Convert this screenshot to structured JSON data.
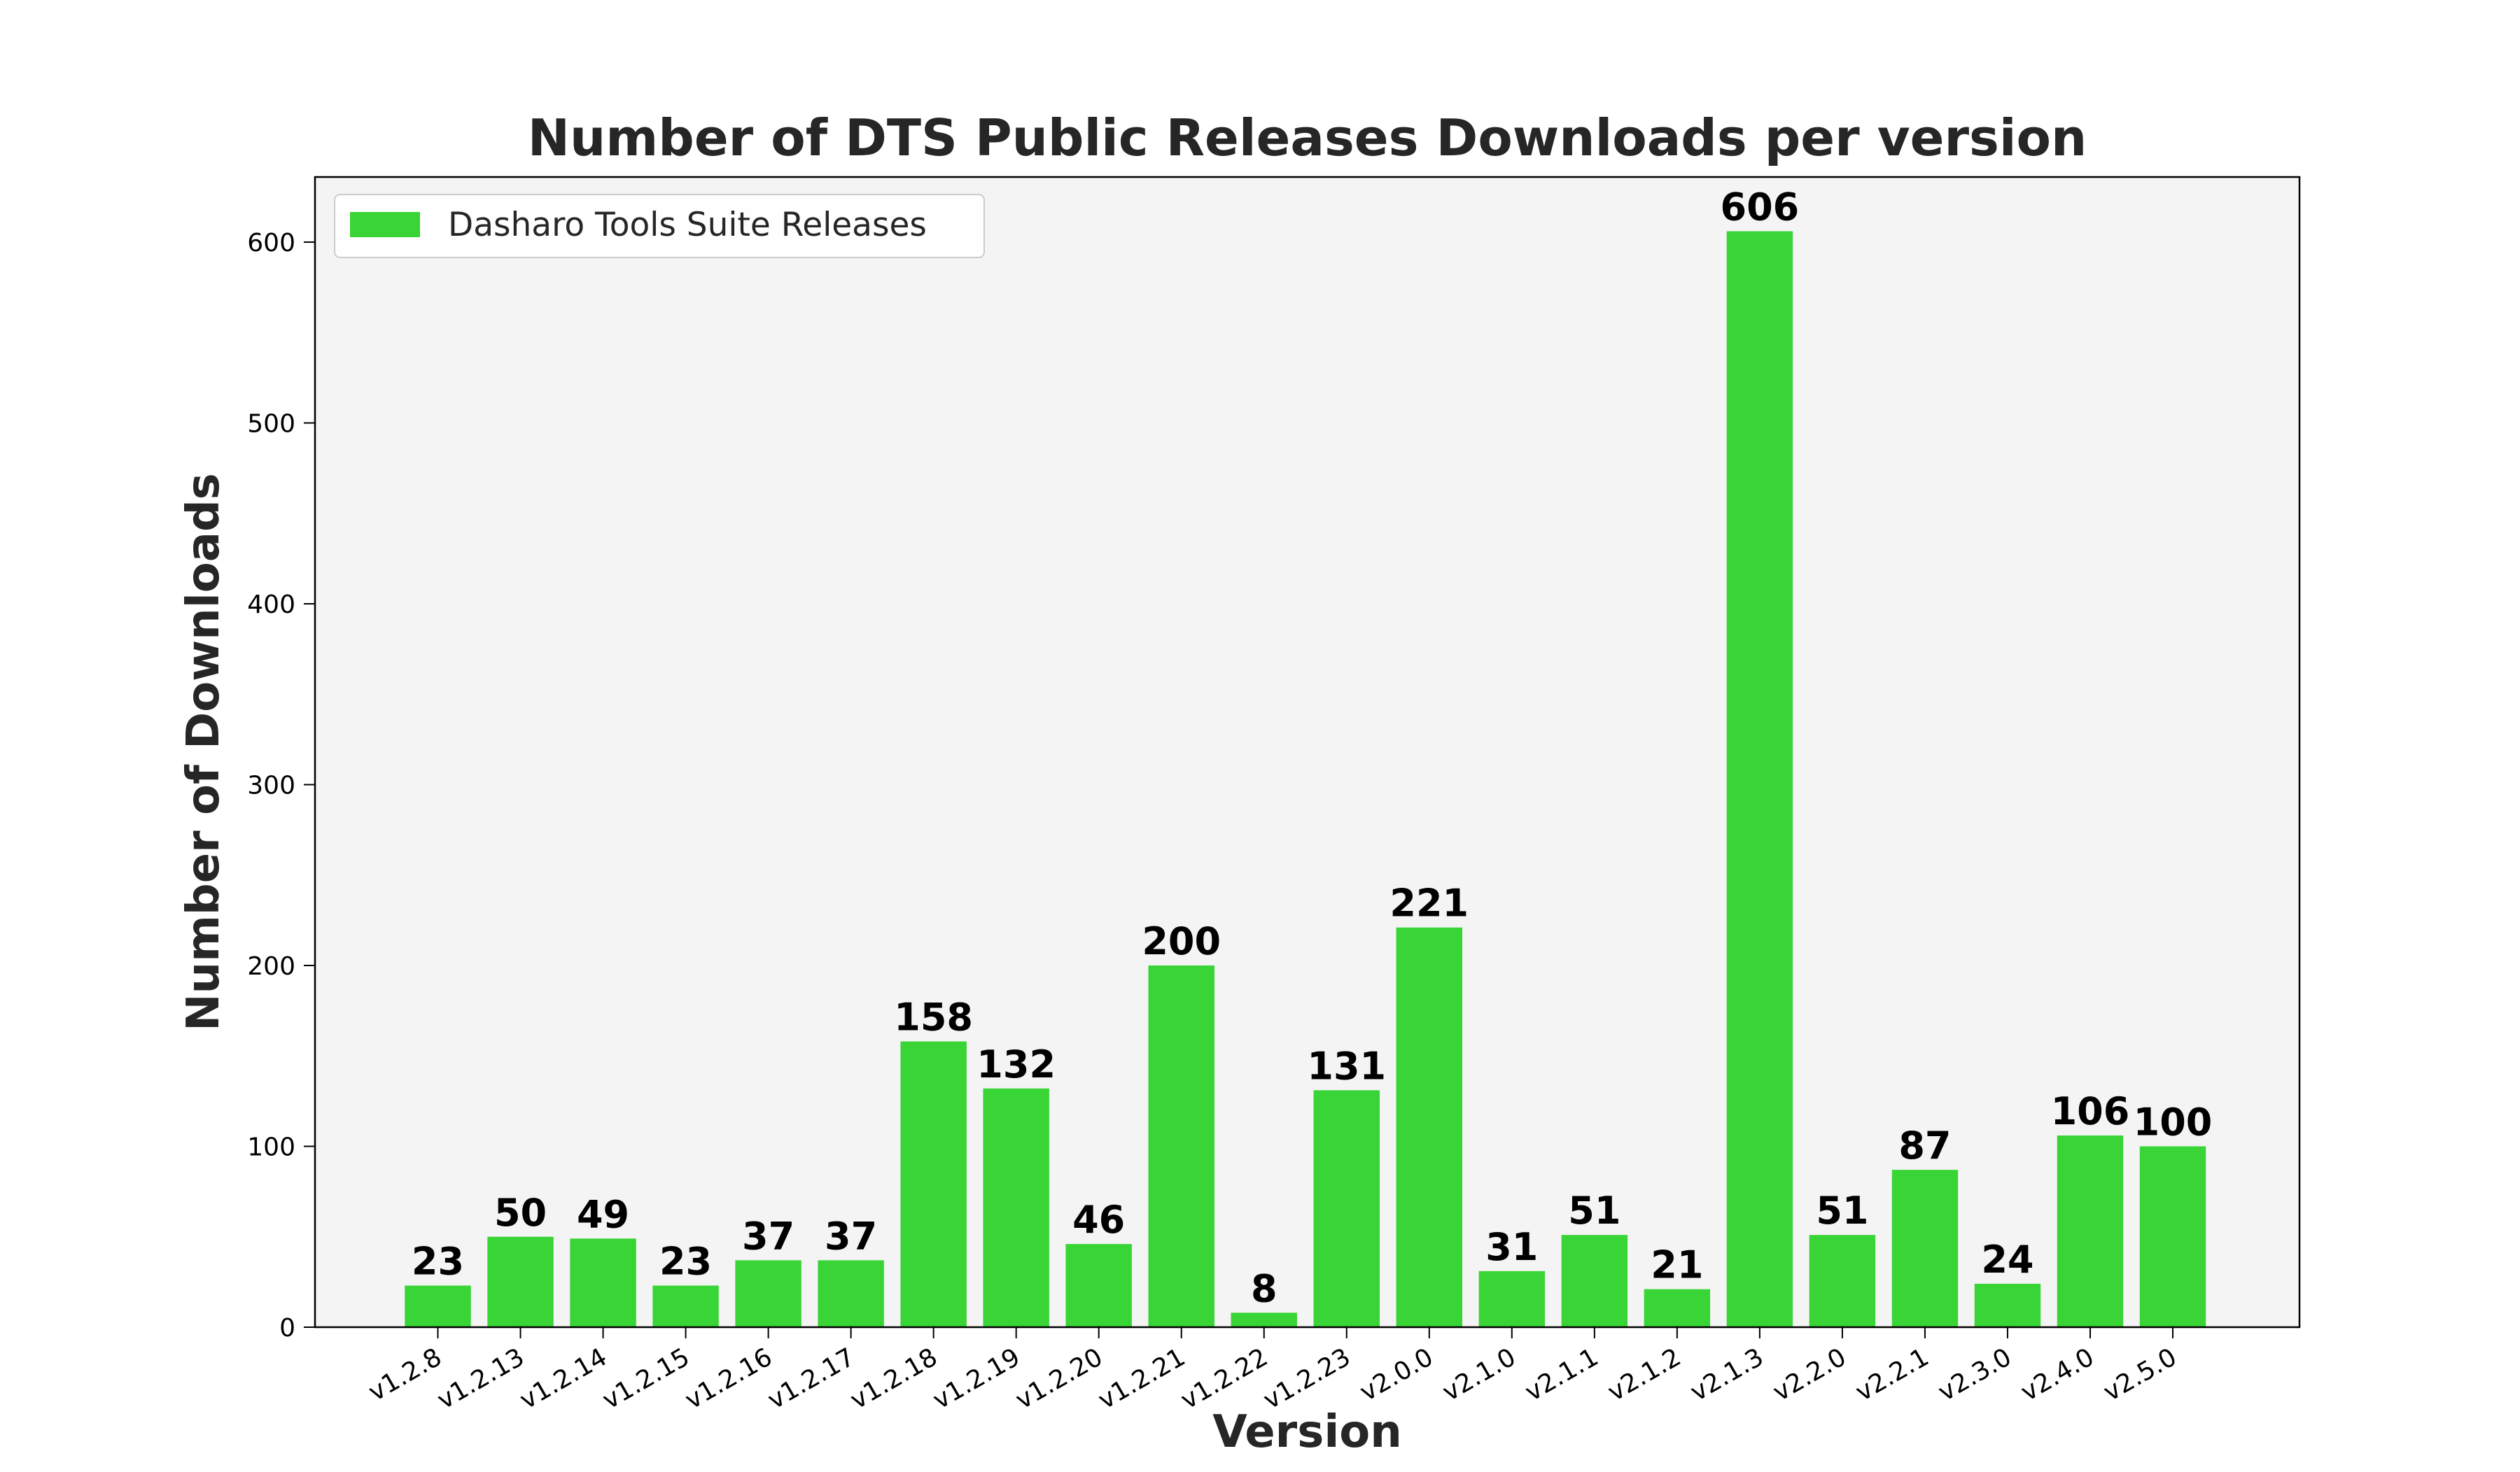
{
  "chart_data": {
    "type": "bar",
    "title": "Number of DTS Public Releases Downloads per version",
    "xlabel": "Version",
    "ylabel": "Number of Downloads",
    "categories": [
      "v1.2.8",
      "v1.2.13",
      "v1.2.14",
      "v1.2.15",
      "v1.2.16",
      "v1.2.17",
      "v1.2.18",
      "v1.2.19",
      "v1.2.20",
      "v1.2.21",
      "v1.2.22",
      "v1.2.23",
      "v2.0.0",
      "v2.1.0",
      "v2.1.1",
      "v2.1.2",
      "v2.1.3",
      "v2.2.0",
      "v2.2.1",
      "v2.3.0",
      "v2.4.0",
      "v2.5.0"
    ],
    "series": [
      {
        "name": "Dasharo Tools Suite Releases",
        "values": [
          23,
          50,
          49,
          23,
          37,
          37,
          158,
          132,
          46,
          200,
          8,
          131,
          221,
          31,
          51,
          21,
          606,
          51,
          87,
          24,
          106,
          100
        ],
        "color": "#39d435"
      }
    ],
    "ylim": [
      0,
      636
    ],
    "yticks": [
      0,
      100,
      200,
      300,
      400,
      500,
      600
    ],
    "grid": false,
    "legend_position": "top-left",
    "data_labels": true,
    "x_tick_rotation": 30
  },
  "colors": {
    "bar": "#39d435",
    "plot_background": "#f4f4f4",
    "text": "#262626",
    "label_text": "#000000"
  }
}
